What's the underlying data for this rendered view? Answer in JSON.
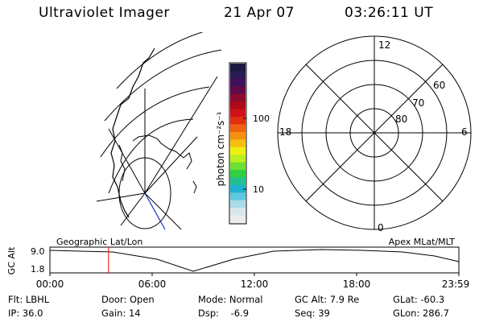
{
  "header": {
    "instrument": "Ultraviolet Imager",
    "date": "21 Apr 07",
    "time": "03:26:11 UT"
  },
  "colorbar": {
    "unit_label": "photon cm⁻²s⁻¹",
    "ticks": [
      "100",
      "10"
    ],
    "colors": [
      "#1a1a40",
      "#2a1a55",
      "#40105a",
      "#600a4a",
      "#8a0a30",
      "#b00818",
      "#d0101a",
      "#e03010",
      "#f06010",
      "#f59010",
      "#f5c010",
      "#eef010",
      "#b8f020",
      "#70e030",
      "#30d040",
      "#20c090",
      "#20b0d0",
      "#60c8e0",
      "#a8dce8",
      "#d8e8ea",
      "#ececec"
    ]
  },
  "polar_plot": {
    "lat_labels": [
      "60",
      "70",
      "80"
    ],
    "mlt_labels": {
      "top": "12",
      "left": "18",
      "right": "6",
      "bottom": "0"
    }
  },
  "timeline": {
    "ylabel": "GC Alt",
    "y_ticks": [
      "9.0",
      "1.8"
    ],
    "left_label": "Geographic Lat/Lon",
    "right_label": "Apex MLat/MLT",
    "x_ticks": [
      "00:00",
      "06:00",
      "12:00",
      "18:00",
      "23:59"
    ],
    "current_time_hours": 3.437,
    "marker_color": "#ff0000"
  },
  "info": {
    "row1": {
      "filter": "Flt: LBHL",
      "door": "Door: Open",
      "mode": "Mode: Normal",
      "gc_alt": "GC Alt: 7.9 Re",
      "glat": "GLat: -60.3"
    },
    "row2": {
      "ip": "IP: 36.0",
      "gain": "Gain: 14",
      "dsp": "Dsp:    -6.9",
      "seq": "Seq: 39",
      "glon": "GLon: 286.7"
    }
  }
}
